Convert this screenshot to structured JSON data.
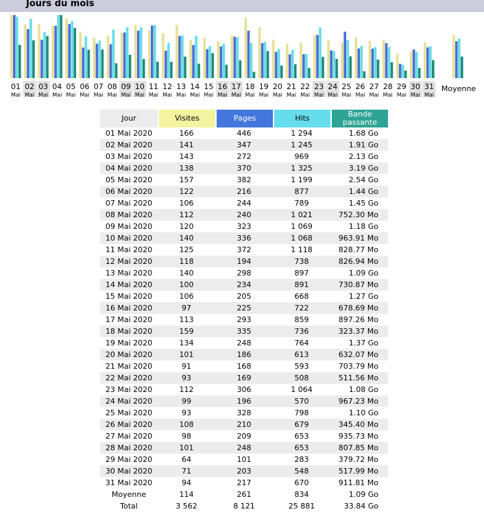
{
  "section_title": "Jours du mois",
  "chart_data": {
    "type": "bar",
    "title": "Jours du mois",
    "categories": [
      "01",
      "02",
      "03",
      "04",
      "05",
      "06",
      "07",
      "08",
      "09",
      "10",
      "11",
      "12",
      "13",
      "14",
      "15",
      "16",
      "17",
      "18",
      "19",
      "20",
      "21",
      "22",
      "23",
      "24",
      "25",
      "26",
      "27",
      "28",
      "29",
      "30",
      "31"
    ],
    "month_label": "Mai",
    "average_label": "Moyenne",
    "weekend_days": [
      "02",
      "03",
      "09",
      "10",
      "16",
      "17",
      "23",
      "24",
      "30",
      "31"
    ],
    "series": [
      {
        "name": "Visites",
        "color": "#e7e097",
        "values": [
          166,
          141,
          143,
          138,
          157,
          122,
          106,
          112,
          120,
          140,
          125,
          118,
          140,
          100,
          106,
          97,
          113,
          159,
          134,
          101,
          91,
          93,
          112,
          99,
          93,
          108,
          98,
          101,
          64,
          71,
          94
        ],
        "average": 114
      },
      {
        "name": "Pages",
        "color": "#4a6fd0",
        "values": [
          446,
          347,
          272,
          370,
          382,
          216,
          244,
          240,
          323,
          336,
          372,
          194,
          298,
          234,
          205,
          225,
          293,
          335,
          248,
          186,
          168,
          169,
          306,
          196,
          328,
          210,
          209,
          248,
          101,
          203,
          217
        ],
        "average": 261
      },
      {
        "name": "Hits",
        "color": "#66dde8",
        "values": [
          1294,
          1245,
          969,
          1325,
          1199,
          877,
          789,
          1021,
          1069,
          1068,
          1118,
          738,
          897,
          891,
          668,
          722,
          859,
          736,
          764,
          613,
          593,
          508,
          1064,
          570,
          798,
          679,
          653,
          653,
          283,
          548,
          670
        ],
        "average": 834
      },
      {
        "name": "Bande passante",
        "color": "#1e8a78",
        "values": [
          1.68,
          1.91,
          2.13,
          3.19,
          2.54,
          1.44,
          1.45,
          0.7523,
          1.18,
          0.9639,
          0.8288,
          0.8269,
          1.09,
          0.7309,
          1.27,
          0.6787,
          0.8973,
          0.3234,
          1.37,
          0.6321,
          0.7038,
          0.5116,
          1.08,
          0.9672,
          1.1,
          0.3454,
          0.9357,
          0.8079,
          0.3797,
          0.518,
          0.9118
        ],
        "average": 1.09,
        "unit": "Go"
      }
    ]
  },
  "table": {
    "headers": {
      "jour": "Jour",
      "visites": "Visites",
      "pages": "Pages",
      "hits": "Hits",
      "bande": "Bande passante"
    },
    "rows": [
      {
        "jour": "01 Mai 2020",
        "visites": "166",
        "pages": "446",
        "hits": "1 294",
        "bande": "1.68 Go"
      },
      {
        "jour": "02 Mai 2020",
        "visites": "141",
        "pages": "347",
        "hits": "1 245",
        "bande": "1.91 Go"
      },
      {
        "jour": "03 Mai 2020",
        "visites": "143",
        "pages": "272",
        "hits": "969",
        "bande": "2.13 Go"
      },
      {
        "jour": "04 Mai 2020",
        "visites": "138",
        "pages": "370",
        "hits": "1 325",
        "bande": "3.19 Go"
      },
      {
        "jour": "05 Mai 2020",
        "visites": "157",
        "pages": "382",
        "hits": "1 199",
        "bande": "2.54 Go"
      },
      {
        "jour": "06 Mai 2020",
        "visites": "122",
        "pages": "216",
        "hits": "877",
        "bande": "1.44 Go"
      },
      {
        "jour": "07 Mai 2020",
        "visites": "106",
        "pages": "244",
        "hits": "789",
        "bande": "1.45 Go"
      },
      {
        "jour": "08 Mai 2020",
        "visites": "112",
        "pages": "240",
        "hits": "1 021",
        "bande": "752.30 Mo"
      },
      {
        "jour": "09 Mai 2020",
        "visites": "120",
        "pages": "323",
        "hits": "1 069",
        "bande": "1.18 Go"
      },
      {
        "jour": "10 Mai 2020",
        "visites": "140",
        "pages": "336",
        "hits": "1 068",
        "bande": "963.91 Mo"
      },
      {
        "jour": "11 Mai 2020",
        "visites": "125",
        "pages": "372",
        "hits": "1 118",
        "bande": "828.77 Mo"
      },
      {
        "jour": "12 Mai 2020",
        "visites": "118",
        "pages": "194",
        "hits": "738",
        "bande": "826.94 Mo"
      },
      {
        "jour": "13 Mai 2020",
        "visites": "140",
        "pages": "298",
        "hits": "897",
        "bande": "1.09 Go"
      },
      {
        "jour": "14 Mai 2020",
        "visites": "100",
        "pages": "234",
        "hits": "891",
        "bande": "730.87 Mo"
      },
      {
        "jour": "15 Mai 2020",
        "visites": "106",
        "pages": "205",
        "hits": "668",
        "bande": "1.27 Go"
      },
      {
        "jour": "16 Mai 2020",
        "visites": "97",
        "pages": "225",
        "hits": "722",
        "bande": "678.69 Mo"
      },
      {
        "jour": "17 Mai 2020",
        "visites": "113",
        "pages": "293",
        "hits": "859",
        "bande": "897.26 Mo"
      },
      {
        "jour": "18 Mai 2020",
        "visites": "159",
        "pages": "335",
        "hits": "736",
        "bande": "323.37 Mo"
      },
      {
        "jour": "19 Mai 2020",
        "visites": "134",
        "pages": "248",
        "hits": "764",
        "bande": "1.37 Go"
      },
      {
        "jour": "20 Mai 2020",
        "visites": "101",
        "pages": "186",
        "hits": "613",
        "bande": "632.07 Mo"
      },
      {
        "jour": "21 Mai 2020",
        "visites": "91",
        "pages": "168",
        "hits": "593",
        "bande": "703.79 Mo"
      },
      {
        "jour": "22 Mai 2020",
        "visites": "93",
        "pages": "169",
        "hits": "508",
        "bande": "511.56 Mo"
      },
      {
        "jour": "23 Mai 2020",
        "visites": "112",
        "pages": "306",
        "hits": "1 064",
        "bande": "1.08 Go"
      },
      {
        "jour": "24 Mai 2020",
        "visites": "99",
        "pages": "196",
        "hits": "570",
        "bande": "967.23 Mo"
      },
      {
        "jour": "25 Mai 2020",
        "visites": "93",
        "pages": "328",
        "hits": "798",
        "bande": "1.10 Go"
      },
      {
        "jour": "26 Mai 2020",
        "visites": "108",
        "pages": "210",
        "hits": "679",
        "bande": "345.40 Mo"
      },
      {
        "jour": "27 Mai 2020",
        "visites": "98",
        "pages": "209",
        "hits": "653",
        "bande": "935.73 Mo"
      },
      {
        "jour": "28 Mai 2020",
        "visites": "101",
        "pages": "248",
        "hits": "653",
        "bande": "807.85 Mo"
      },
      {
        "jour": "29 Mai 2020",
        "visites": "64",
        "pages": "101",
        "hits": "283",
        "bande": "379.72 Mo"
      },
      {
        "jour": "30 Mai 2020",
        "visites": "71",
        "pages": "203",
        "hits": "548",
        "bande": "517.99 Mo"
      },
      {
        "jour": "31 Mai 2020",
        "visites": "94",
        "pages": "217",
        "hits": "670",
        "bande": "911.81 Mo"
      }
    ],
    "average": {
      "jour": "Moyenne",
      "visites": "114",
      "pages": "261",
      "hits": "834",
      "bande": "1.09 Go"
    },
    "total": {
      "jour": "Total",
      "visites": "3 562",
      "pages": "8 121",
      "hits": "25 881",
      "bande": "33.84 Go"
    }
  }
}
